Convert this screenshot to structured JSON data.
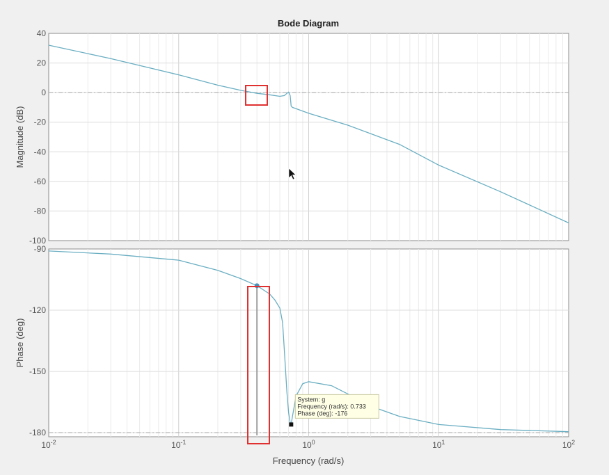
{
  "chart_data": {
    "type": "line",
    "title": "Bode Diagram",
    "xlabel": "Frequency  (rad/s)",
    "xscale": "log",
    "xlim": [
      0.01,
      100
    ],
    "x_ticks": [
      {
        "base": "10",
        "exp": "-2"
      },
      {
        "base": "10",
        "exp": "-1"
      },
      {
        "base": "10",
        "exp": "0"
      },
      {
        "base": "10",
        "exp": "1"
      },
      {
        "base": "10",
        "exp": "2"
      }
    ],
    "grid": true,
    "colors": {
      "line": "#6aaec2",
      "grid": "#dcdcdc",
      "highlight": "#e03030",
      "axes_bg": "#ffffff",
      "figure_bg": "#f0f0f0",
      "tooltip_bg": "#ffffe6"
    },
    "magnitude": {
      "ylabel": "Magnitude (dB)",
      "ylim": [
        -100,
        40
      ],
      "yticks": [
        "40",
        "20",
        "0",
        "-20",
        "-40",
        "-60",
        "-80",
        "-100"
      ],
      "reference_line": 0,
      "x": [
        0.01,
        0.03,
        0.1,
        0.2,
        0.3,
        0.4,
        0.5,
        0.6,
        0.65,
        0.68,
        0.7,
        0.72,
        0.733,
        0.75,
        0.78,
        1,
        2,
        5,
        10,
        30,
        100
      ],
      "y": [
        32,
        23,
        12,
        5,
        1.5,
        -0.5,
        -1.5,
        -2.5,
        -2,
        -0.5,
        0.3,
        -2,
        -9,
        -10,
        -10.5,
        -14,
        -22,
        -35,
        -49,
        -67,
        -88
      ]
    },
    "phase": {
      "ylabel": "Phase (deg)",
      "ylim": [
        -182,
        -90
      ],
      "yticks": [
        "-90",
        "-120",
        "-150",
        "-180"
      ],
      "reference_line": -180,
      "x": [
        0.01,
        0.03,
        0.1,
        0.2,
        0.3,
        0.4,
        0.5,
        0.55,
        0.6,
        0.63,
        0.65,
        0.68,
        0.7,
        0.72,
        0.733,
        0.75,
        0.8,
        0.9,
        1,
        1.5,
        2,
        3,
        5,
        10,
        30,
        100
      ],
      "y": [
        -91,
        -92.5,
        -95.5,
        -100.5,
        -104.5,
        -108,
        -112,
        -115,
        -119,
        -126,
        -140,
        -160,
        -170,
        -175,
        -176,
        -172,
        -162,
        -156,
        -155,
        -157,
        -161,
        -167,
        -172,
        -176,
        -178.5,
        -179.5
      ]
    },
    "selected_point": {
      "x": 0.4,
      "y": -108
    },
    "datatip": {
      "x": 0.733,
      "y": -176,
      "lines": [
        "System: g",
        "Frequency (rad/s): 0.733",
        "Phase (deg): -176"
      ]
    }
  }
}
